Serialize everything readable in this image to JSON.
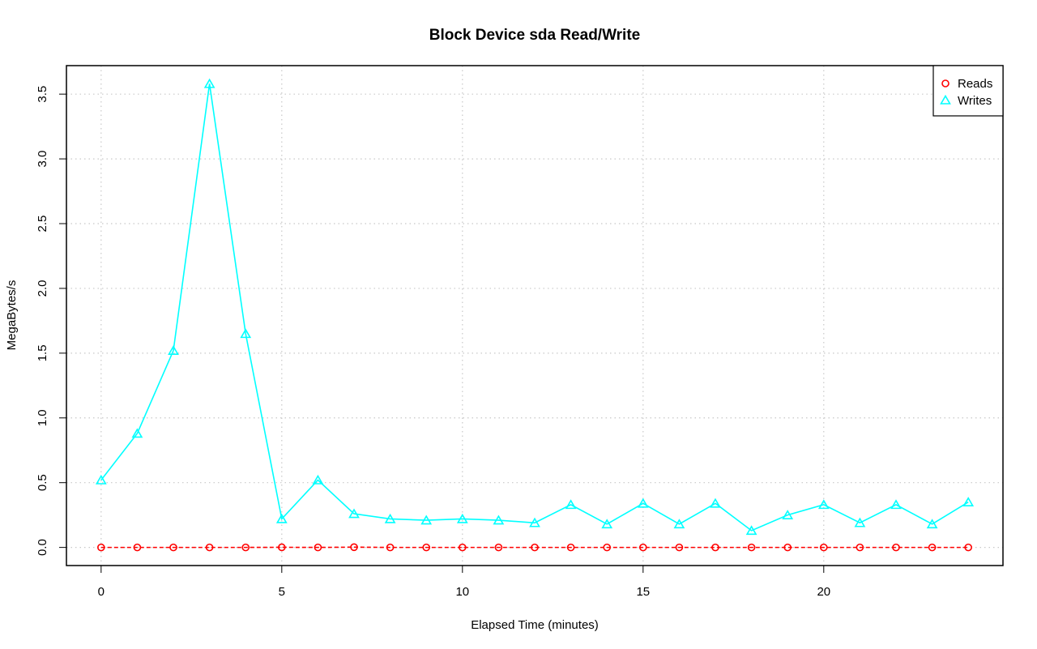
{
  "chart_data": {
    "type": "line",
    "title": "Block Device sda Read/Write",
    "xlabel": "Elapsed Time (minutes)",
    "ylabel": "MegaBytes/s",
    "xlim": [
      -0.96,
      24.96
    ],
    "ylim": [
      -0.14,
      3.72
    ],
    "xticks": [
      0,
      5,
      10,
      15,
      20
    ],
    "xtick_labels": [
      "0",
      "5",
      "10",
      "15",
      "20"
    ],
    "yticks": [
      0,
      0.5,
      1,
      1.5,
      2,
      2.5,
      3,
      3.5
    ],
    "ytick_labels": [
      "0.0",
      "0.5",
      "1.0",
      "1.5",
      "2.0",
      "2.5",
      "3.0",
      "3.5"
    ],
    "grid": true,
    "legend_position": "top-right",
    "x": [
      0,
      1,
      2,
      3,
      4,
      5,
      6,
      7,
      8,
      9,
      10,
      11,
      12,
      13,
      14,
      15,
      16,
      17,
      18,
      19,
      20,
      21,
      22,
      23,
      24
    ],
    "series": [
      {
        "name": "Reads",
        "color": "#ff0000",
        "marker": "circle",
        "line_style": "dashed",
        "values": [
          0,
          0,
          0,
          0,
          0,
          0.001,
          0,
          0.002,
          0,
          0,
          0,
          0,
          0,
          0,
          0,
          0,
          0,
          0,
          0,
          0,
          0,
          0,
          0,
          0,
          0
        ]
      },
      {
        "name": "Writes",
        "color": "#00ffff",
        "marker": "triangle",
        "line_style": "solid",
        "values": [
          0.52,
          0.88,
          1.52,
          3.58,
          1.65,
          0.22,
          0.52,
          0.26,
          0.22,
          0.21,
          0.22,
          0.21,
          0.19,
          0.33,
          0.18,
          0.34,
          0.18,
          0.34,
          0.13,
          0.25,
          0.33,
          0.19,
          0.33,
          0.18,
          0.35
        ]
      }
    ]
  }
}
